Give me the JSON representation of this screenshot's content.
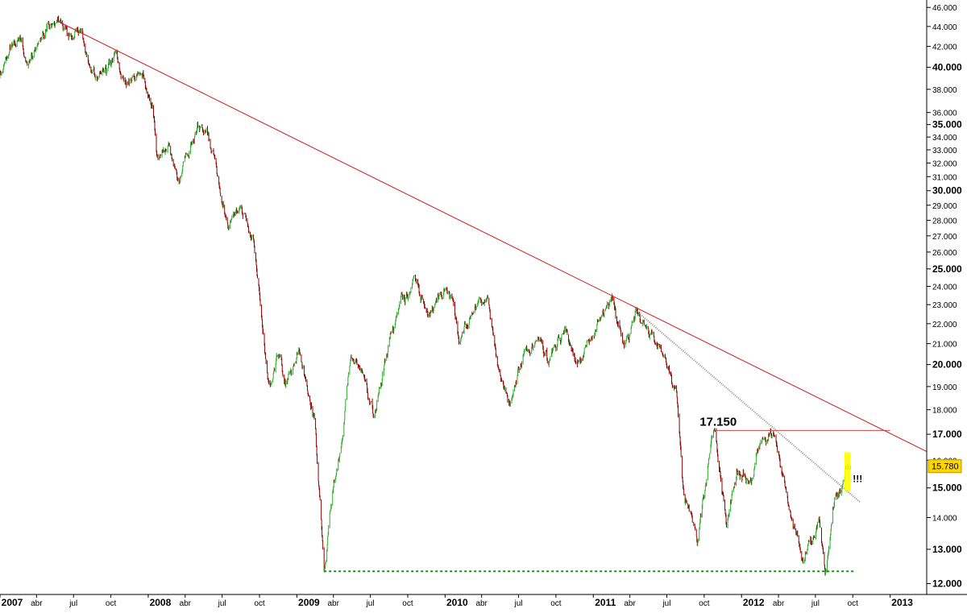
{
  "chart_data": {
    "type": "candlestick",
    "title": "",
    "xlabel": "",
    "ylabel": "",
    "y_scale": "log",
    "ylim": [
      11700,
      46800
    ],
    "xlim": [
      "2007-01-01",
      "2013-04-01"
    ],
    "grid": false,
    "legend": "none",
    "y_ticks": [
      {
        "v": 12000,
        "label": "12.000",
        "major": true
      },
      {
        "v": 13000,
        "label": "13.000",
        "major": true
      },
      {
        "v": 14000,
        "label": "14.000",
        "major": false
      },
      {
        "v": 15000,
        "label": "15.000",
        "major": true
      },
      {
        "v": 16000,
        "label": "16.000",
        "major": false
      },
      {
        "v": 17000,
        "label": "17.000",
        "major": true
      },
      {
        "v": 18000,
        "label": "18.000",
        "major": false
      },
      {
        "v": 19000,
        "label": "19.000",
        "major": false
      },
      {
        "v": 20000,
        "label": "20.000",
        "major": true
      },
      {
        "v": 21000,
        "label": "21.000",
        "major": false
      },
      {
        "v": 22000,
        "label": "22.000",
        "major": false
      },
      {
        "v": 23000,
        "label": "23.000",
        "major": false
      },
      {
        "v": 24000,
        "label": "24.000",
        "major": false
      },
      {
        "v": 25000,
        "label": "25.000",
        "major": true
      },
      {
        "v": 26000,
        "label": "26.000",
        "major": false
      },
      {
        "v": 27000,
        "label": "27.000",
        "major": false
      },
      {
        "v": 28000,
        "label": "28.000",
        "major": false
      },
      {
        "v": 29000,
        "label": "29.000",
        "major": false
      },
      {
        "v": 30000,
        "label": "30.000",
        "major": true
      },
      {
        "v": 31000,
        "label": "31.000",
        "major": false
      },
      {
        "v": 32000,
        "label": "32.000",
        "major": false
      },
      {
        "v": 33000,
        "label": "33.000",
        "major": false
      },
      {
        "v": 34000,
        "label": "34.000",
        "major": false
      },
      {
        "v": 35000,
        "label": "35.000",
        "major": true
      },
      {
        "v": 36000,
        "label": "36.000",
        "major": false
      },
      {
        "v": 38000,
        "label": "38.000",
        "major": false
      },
      {
        "v": 40000,
        "label": "40.000",
        "major": true
      },
      {
        "v": 42000,
        "label": "42.000",
        "major": false
      },
      {
        "v": 44000,
        "label": "44.000",
        "major": false
      },
      {
        "v": 46000,
        "label": "46.000",
        "major": false
      }
    ],
    "x_ticks": [
      {
        "date": "2007-01-01",
        "label": "2007",
        "major": true
      },
      {
        "date": "2007-04-01",
        "label": "abr",
        "major": false
      },
      {
        "date": "2007-07-01",
        "label": "jul",
        "major": false
      },
      {
        "date": "2007-10-01",
        "label": "oct",
        "major": false
      },
      {
        "date": "2008-01-01",
        "label": "2008",
        "major": true
      },
      {
        "date": "2008-04-01",
        "label": "abr",
        "major": false
      },
      {
        "date": "2008-07-01",
        "label": "jul",
        "major": false
      },
      {
        "date": "2008-10-01",
        "label": "oct",
        "major": false
      },
      {
        "date": "2009-01-01",
        "label": "2009",
        "major": true
      },
      {
        "date": "2009-04-01",
        "label": "abr",
        "major": false
      },
      {
        "date": "2009-07-01",
        "label": "jul",
        "major": false
      },
      {
        "date": "2009-10-01",
        "label": "oct",
        "major": false
      },
      {
        "date": "2010-01-01",
        "label": "2010",
        "major": true
      },
      {
        "date": "2010-04-01",
        "label": "abr",
        "major": false
      },
      {
        "date": "2010-07-01",
        "label": "jul",
        "major": false
      },
      {
        "date": "2010-10-01",
        "label": "oct",
        "major": false
      },
      {
        "date": "2011-01-01",
        "label": "2011",
        "major": true
      },
      {
        "date": "2011-04-01",
        "label": "abr",
        "major": false
      },
      {
        "date": "2011-07-01",
        "label": "jul",
        "major": false
      },
      {
        "date": "2011-10-01",
        "label": "oct",
        "major": false
      },
      {
        "date": "2012-01-01",
        "label": "2012",
        "major": true
      },
      {
        "date": "2012-04-01",
        "label": "abr",
        "major": false
      },
      {
        "date": "2012-07-01",
        "label": "jul",
        "major": false
      },
      {
        "date": "2012-10-01",
        "label": "oct",
        "major": false
      },
      {
        "date": "2013-01-01",
        "label": "2013",
        "major": true
      }
    ],
    "price_path": [
      [
        "2006-12-26",
        39000
      ],
      [
        "2007-01-20",
        41000
      ],
      [
        "2007-02-20",
        42800
      ],
      [
        "2007-03-10",
        40000
      ],
      [
        "2007-04-01",
        42000
      ],
      [
        "2007-05-20",
        44500
      ],
      [
        "2007-06-20",
        43200
      ],
      [
        "2007-07-20",
        43800
      ],
      [
        "2007-08-15",
        39500
      ],
      [
        "2007-09-10",
        39800
      ],
      [
        "2007-10-15",
        41500
      ],
      [
        "2007-11-15",
        38500
      ],
      [
        "2007-12-10",
        39500
      ],
      [
        "2008-01-10",
        36800
      ],
      [
        "2008-01-22",
        32500
      ],
      [
        "2008-02-20",
        33500
      ],
      [
        "2008-03-17",
        30500
      ],
      [
        "2008-04-20",
        33800
      ],
      [
        "2008-05-20",
        34500
      ],
      [
        "2008-06-20",
        31000
      ],
      [
        "2008-07-15",
        27500
      ],
      [
        "2008-08-15",
        29000
      ],
      [
        "2008-09-15",
        27000
      ],
      [
        "2008-10-10",
        21500
      ],
      [
        "2008-10-25",
        19000
      ],
      [
        "2008-11-15",
        20500
      ],
      [
        "2008-12-01",
        19200
      ],
      [
        "2009-01-06",
        20800
      ],
      [
        "2009-02-15",
        17500
      ],
      [
        "2009-03-09",
        12350
      ],
      [
        "2009-04-20",
        16500
      ],
      [
        "2009-05-15",
        20300
      ],
      [
        "2009-06-15",
        19500
      ],
      [
        "2009-07-10",
        17700
      ],
      [
        "2009-08-20",
        21500
      ],
      [
        "2009-10-20",
        24400
      ],
      [
        "2009-11-20",
        22400
      ],
      [
        "2010-01-10",
        23800
      ],
      [
        "2010-02-05",
        21000
      ],
      [
        "2010-03-10",
        22500
      ],
      [
        "2010-04-15",
        23500
      ],
      [
        "2010-05-10",
        20000
      ],
      [
        "2010-06-10",
        18200
      ],
      [
        "2010-07-15",
        20700
      ],
      [
        "2010-08-15",
        21200
      ],
      [
        "2010-09-15",
        20200
      ],
      [
        "2010-10-20",
        21600
      ],
      [
        "2010-11-20",
        20000
      ],
      [
        "2010-12-10",
        20800
      ],
      [
        "2011-01-15",
        22200
      ],
      [
        "2011-02-18",
        23300
      ],
      [
        "2011-03-15",
        21000
      ],
      [
        "2011-04-15",
        22800
      ],
      [
        "2011-05-15",
        21800
      ],
      [
        "2011-06-20",
        20500
      ],
      [
        "2011-07-25",
        18800
      ],
      [
        "2011-08-10",
        15000
      ],
      [
        "2011-09-15",
        13200
      ],
      [
        "2011-10-10",
        15800
      ],
      [
        "2011-10-28",
        17150
      ],
      [
        "2011-11-25",
        13700
      ],
      [
        "2011-12-20",
        15600
      ],
      [
        "2012-01-20",
        15200
      ],
      [
        "2012-02-15",
        16600
      ],
      [
        "2012-03-19",
        17100
      ],
      [
        "2012-04-10",
        15500
      ],
      [
        "2012-05-15",
        13500
      ],
      [
        "2012-06-01",
        12600
      ],
      [
        "2012-06-20",
        13200
      ],
      [
        "2012-07-10",
        14000
      ],
      [
        "2012-07-25",
        12300
      ],
      [
        "2012-08-20",
        14800
      ],
      [
        "2012-09-10",
        15300
      ],
      [
        "2012-09-25",
        15780
      ]
    ],
    "annotations": {
      "resistance_label": "17.150",
      "signal_label": "!!!",
      "last_price_label": "15.780"
    },
    "lines": {
      "long_trend": {
        "from": [
          "2007-05-20",
          44600
        ],
        "to": [
          "2013-05-01",
          16100
        ],
        "color": "#cc1a1a"
      },
      "short_trend": {
        "from": [
          "2011-04-15",
          22700
        ],
        "to": [
          "2012-10-20",
          14500
        ],
        "color": "#888888"
      },
      "resistance": {
        "from": [
          "2011-10-28",
          17150
        ],
        "to": [
          "2013-01-01",
          17150
        ],
        "value": 17150,
        "color": "#c44a4a"
      },
      "support": {
        "from": [
          "2009-03-09",
          12350
        ],
        "to": [
          "2012-10-05",
          12350
        ],
        "value": 12350,
        "color": "#1f8a1f"
      }
    },
    "colors": {
      "up": "#2aa92a",
      "down": "#8b0000",
      "highlight": "#ffff00",
      "price_tag": "#ffd700"
    }
  }
}
